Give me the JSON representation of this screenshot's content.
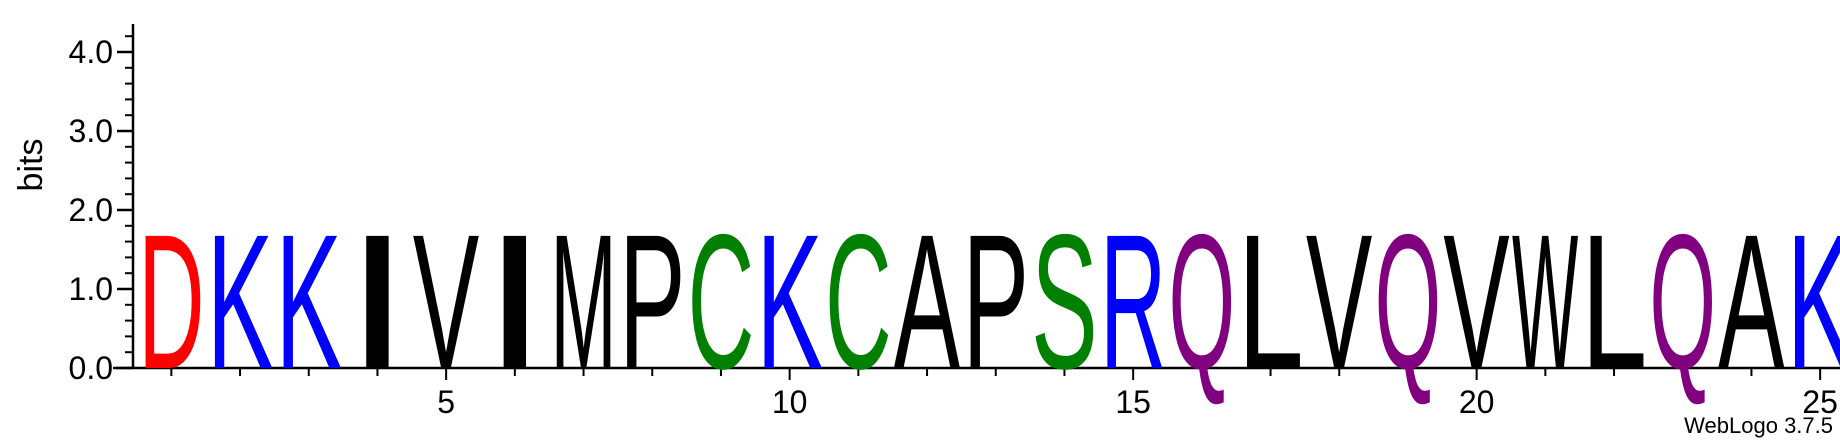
{
  "chart_data": {
    "type": "sequence-logo",
    "ylabel": "bits",
    "ylim": [
      0,
      4.3
    ],
    "y_ticks": [
      {
        "value": 0,
        "label": "0.0"
      },
      {
        "value": 1,
        "label": "1.0"
      },
      {
        "value": 2,
        "label": "2.0"
      },
      {
        "value": 3,
        "label": "3.0"
      },
      {
        "value": 4,
        "label": "4.0"
      }
    ],
    "y_minor_step": 0.2,
    "x_range": [
      1,
      25
    ],
    "x_ticks": [
      {
        "value": 5,
        "label": "5"
      },
      {
        "value": 10,
        "label": "10"
      },
      {
        "value": 15,
        "label": "15"
      },
      {
        "value": 20,
        "label": "20"
      },
      {
        "value": 25,
        "label": "25"
      }
    ],
    "positions": [
      {
        "position": 1,
        "letter": "D",
        "bits": 1.75,
        "color": "#ff0000"
      },
      {
        "position": 2,
        "letter": "K",
        "bits": 1.75,
        "color": "#0000ff"
      },
      {
        "position": 3,
        "letter": "K",
        "bits": 1.75,
        "color": "#0000ff"
      },
      {
        "position": 4,
        "letter": "I",
        "bits": 1.75,
        "color": "#000000"
      },
      {
        "position": 5,
        "letter": "V",
        "bits": 1.75,
        "color": "#000000"
      },
      {
        "position": 6,
        "letter": "I",
        "bits": 1.75,
        "color": "#000000"
      },
      {
        "position": 7,
        "letter": "M",
        "bits": 1.75,
        "color": "#000000"
      },
      {
        "position": 8,
        "letter": "P",
        "bits": 1.75,
        "color": "#000000"
      },
      {
        "position": 9,
        "letter": "C",
        "bits": 1.75,
        "color": "#008000"
      },
      {
        "position": 10,
        "letter": "K",
        "bits": 1.75,
        "color": "#0000ff"
      },
      {
        "position": 11,
        "letter": "C",
        "bits": 1.75,
        "color": "#008000"
      },
      {
        "position": 12,
        "letter": "A",
        "bits": 1.75,
        "color": "#000000"
      },
      {
        "position": 13,
        "letter": "P",
        "bits": 1.75,
        "color": "#000000"
      },
      {
        "position": 14,
        "letter": "S",
        "bits": 1.75,
        "color": "#008000"
      },
      {
        "position": 15,
        "letter": "R",
        "bits": 1.75,
        "color": "#0000ff"
      },
      {
        "position": 16,
        "letter": "Q",
        "bits": 1.75,
        "color": "#800080"
      },
      {
        "position": 17,
        "letter": "L",
        "bits": 1.75,
        "color": "#000000"
      },
      {
        "position": 18,
        "letter": "V",
        "bits": 1.75,
        "color": "#000000"
      },
      {
        "position": 19,
        "letter": "Q",
        "bits": 1.75,
        "color": "#800080"
      },
      {
        "position": 20,
        "letter": "V",
        "bits": 1.75,
        "color": "#000000"
      },
      {
        "position": 21,
        "letter": "W",
        "bits": 1.75,
        "color": "#000000"
      },
      {
        "position": 22,
        "letter": "L",
        "bits": 1.75,
        "color": "#000000"
      },
      {
        "position": 23,
        "letter": "Q",
        "bits": 1.75,
        "color": "#800080"
      },
      {
        "position": 24,
        "letter": "A",
        "bits": 1.75,
        "color": "#000000"
      },
      {
        "position": 25,
        "letter": "K",
        "bits": 1.75,
        "color": "#0000ff"
      }
    ]
  },
  "footer": {
    "version_label": "WebLogo 3.7.5"
  }
}
